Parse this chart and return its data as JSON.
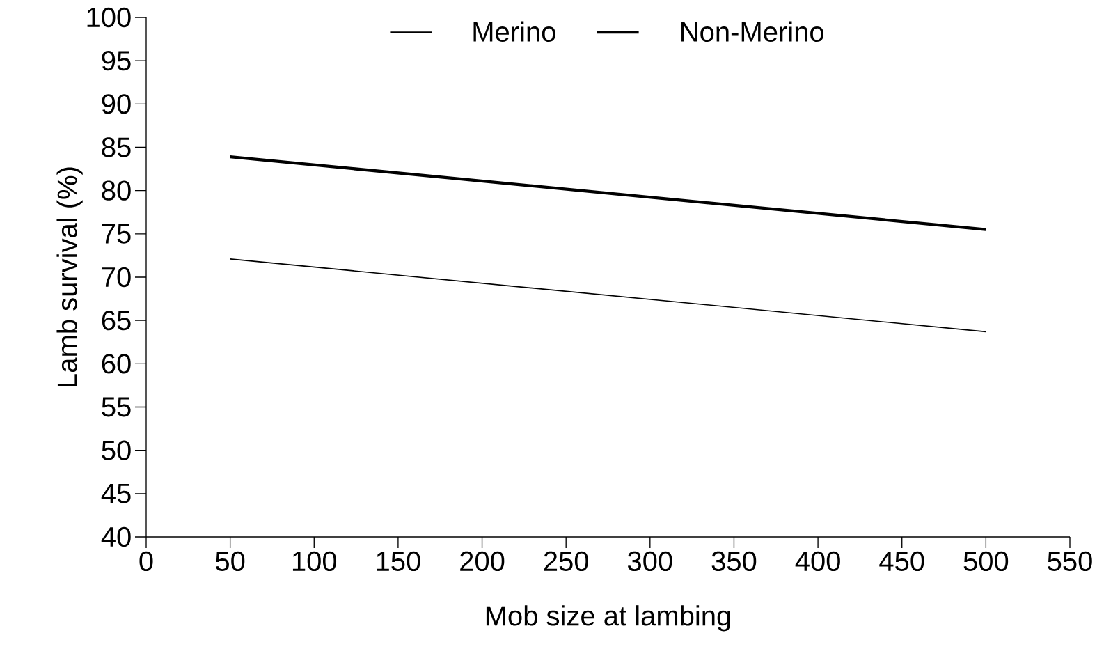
{
  "chart_data": {
    "type": "line",
    "xlabel": "Mob size at lambing",
    "ylabel": "Lamb survival (%)",
    "x": [
      50,
      500
    ],
    "series": [
      {
        "name": "Merino",
        "color": "#000000",
        "values": [
          72.1,
          63.7
        ]
      },
      {
        "name": "Non-Merino",
        "color": "#000000",
        "values": [
          83.9,
          75.5
        ]
      }
    ],
    "xlim": [
      0,
      550
    ],
    "xticks": [
      0,
      50,
      100,
      150,
      200,
      250,
      300,
      350,
      400,
      450,
      500,
      550
    ],
    "ylim": [
      40,
      100
    ],
    "yticks": [
      40,
      45,
      50,
      55,
      60,
      65,
      70,
      75,
      80,
      85,
      90,
      95,
      100
    ],
    "grid": false,
    "legend": "top",
    "marker": "none",
    "line_style": "solid"
  }
}
